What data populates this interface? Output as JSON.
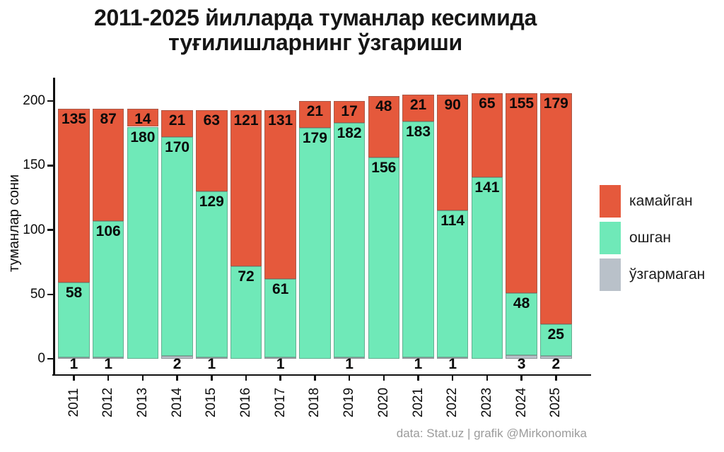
{
  "title": {
    "line1": "2011-2025 йилларда туманлар кесимида",
    "line2": "туғилишларнинг ўзгариши"
  },
  "chart_data": {
    "type": "bar",
    "stacked": true,
    "title": "2011-2025 йилларда туманлар кесимида туғилишларнинг ўзгариши",
    "xlabel": "",
    "ylabel": "туманлар сони",
    "categories": [
      "2011",
      "2012",
      "2013",
      "2014",
      "2015",
      "2016",
      "2017",
      "2018",
      "2019",
      "2020",
      "2021",
      "2022",
      "2023",
      "2024",
      "2025"
    ],
    "series": [
      {
        "name": "камайган",
        "color": "#e5593c",
        "values": [
          135,
          87,
          14,
          21,
          63,
          121,
          131,
          21,
          17,
          48,
          21,
          90,
          65,
          155,
          179
        ]
      },
      {
        "name": "ошган",
        "color": "#6fe9b8",
        "values": [
          58,
          106,
          180,
          170,
          129,
          72,
          61,
          179,
          182,
          156,
          183,
          114,
          141,
          48,
          25
        ]
      },
      {
        "name": "ўзгармаган",
        "color": "#b9c1c9",
        "values": [
          1,
          1,
          0,
          2,
          1,
          0,
          1,
          0,
          1,
          0,
          1,
          1,
          0,
          3,
          2
        ]
      }
    ],
    "yticks": [
      0,
      50,
      100,
      150,
      200
    ],
    "ylim": [
      0,
      219
    ],
    "grid": false,
    "legend_position": "right",
    "bar_labels": true
  },
  "footer": "data: Stat.uz | grafik @Mirkonomika"
}
